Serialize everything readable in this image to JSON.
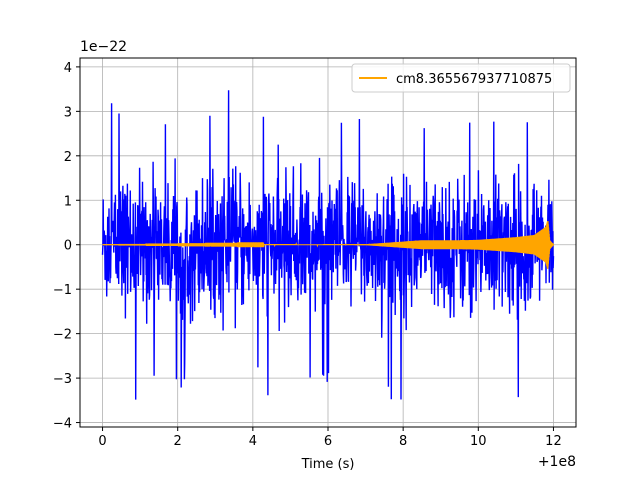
{
  "chart_data": {
    "type": "line",
    "title": "",
    "xlabel": "Time (s)",
    "ylabel": "",
    "x_offset_label": "+1e8",
    "y_scale_label": "1e−22",
    "xlim": [
      -0.6,
      12.6
    ],
    "ylim": [
      -4.1,
      4.2
    ],
    "x_ticks": [
      0,
      2,
      4,
      6,
      8,
      10,
      12
    ],
    "x_tick_labels": [
      "0",
      "2",
      "4",
      "6",
      "8",
      "10",
      "12"
    ],
    "y_ticks": [
      -4,
      -3,
      -2,
      -1,
      0,
      1,
      2,
      3,
      4
    ],
    "y_tick_labels": [
      "−4",
      "−3",
      "−2",
      "−1",
      "0",
      "1",
      "2",
      "3",
      "4"
    ],
    "grid": true,
    "legend": {
      "placement": "top-right"
    },
    "series": [
      {
        "name": "",
        "color": "#0000ff",
        "kind": "noise",
        "x_range": [
          0,
          12
        ],
        "typical_peak": 2.2,
        "max": 3.8,
        "min": -3.65
      },
      {
        "name": "cm8.365567937710875",
        "color": "#ffa500",
        "kind": "inspiral-envelope",
        "envelope": [
          [
            0,
            0
          ],
          [
            7.0,
            0.01
          ],
          [
            7.5,
            0.04
          ],
          [
            8.0,
            0.07
          ],
          [
            8.5,
            0.1
          ],
          [
            9.0,
            0.1
          ],
          [
            9.5,
            0.1
          ],
          [
            10.0,
            0.11
          ],
          [
            10.5,
            0.14
          ],
          [
            11.0,
            0.17
          ],
          [
            11.5,
            0.22
          ],
          [
            11.8,
            0.4
          ],
          [
            11.85,
            0.55
          ],
          [
            11.9,
            0.1
          ],
          [
            12.0,
            0
          ]
        ]
      }
    ]
  }
}
